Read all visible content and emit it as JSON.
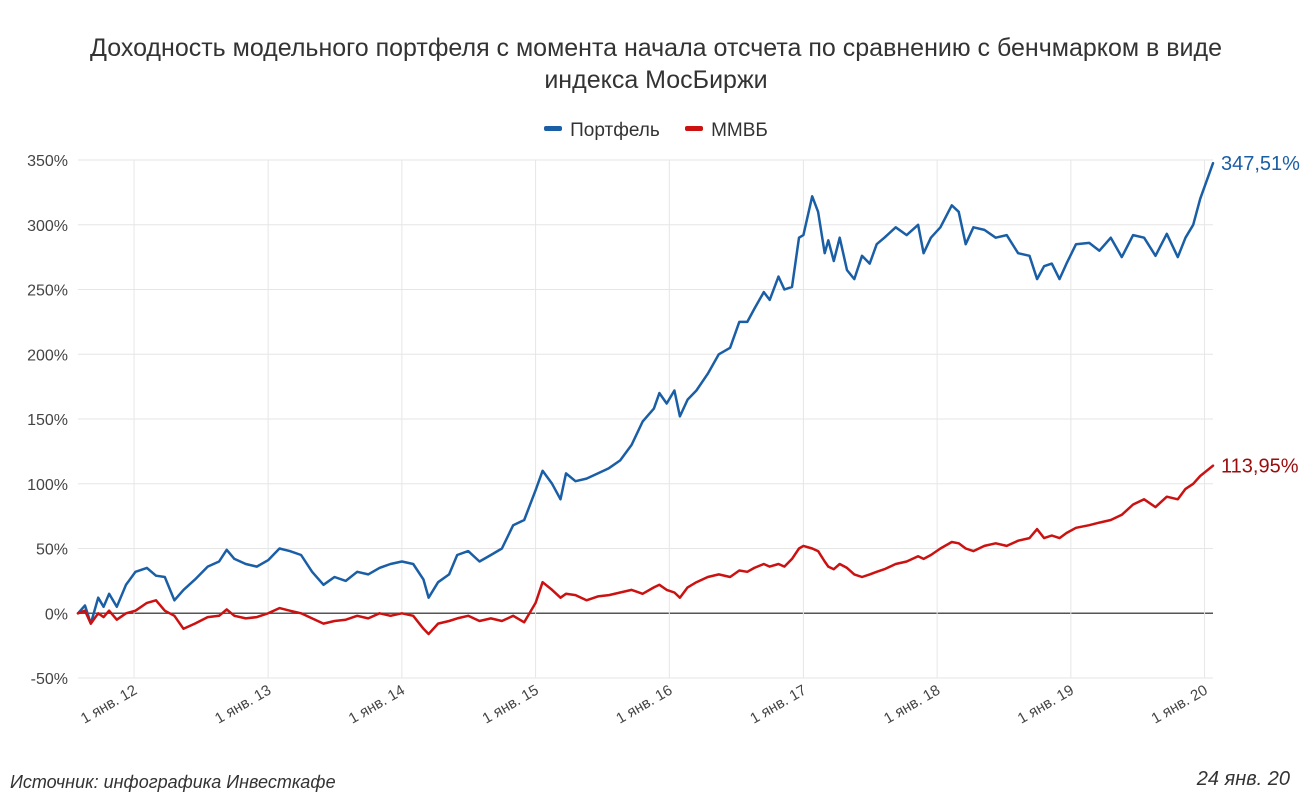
{
  "chart_data": {
    "type": "line",
    "title_lines": [
      "Доходность модельного портфеля с момента начала отсчета по сравнению с бенчмарком в виде",
      "индекса МосБиржи"
    ],
    "x_ticks": [
      "1 янв. 12",
      "1 янв. 13",
      "1 янв. 14",
      "1 янв. 15",
      "1 янв. 16",
      "1 янв. 17",
      "1 янв. 18",
      "1 янв. 19",
      "1 янв. 20"
    ],
    "x_range": [
      "2011-08-01",
      "2020-01-24"
    ],
    "y_ticks": [
      "350%",
      "300%",
      "250%",
      "200%",
      "150%",
      "100%",
      "50%",
      "0%",
      "-50%"
    ],
    "ylim": [
      -50,
      350
    ],
    "ylabel": "",
    "xlabel": "",
    "grid": true,
    "legend_position": "top-center",
    "series": [
      {
        "name": "Портфель",
        "color": "#1a5ea6",
        "end_label": "347,51%",
        "points": [
          [
            "2011-08-01",
            0
          ],
          [
            "2011-08-20",
            6
          ],
          [
            "2011-09-05",
            -8
          ],
          [
            "2011-09-25",
            12
          ],
          [
            "2011-10-10",
            5
          ],
          [
            "2011-10-25",
            15
          ],
          [
            "2011-11-15",
            5
          ],
          [
            "2011-12-10",
            22
          ],
          [
            "2012-01-05",
            32
          ],
          [
            "2012-02-05",
            35
          ],
          [
            "2012-03-01",
            29
          ],
          [
            "2012-03-25",
            28
          ],
          [
            "2012-04-20",
            10
          ],
          [
            "2012-05-15",
            18
          ],
          [
            "2012-06-15",
            26
          ],
          [
            "2012-07-20",
            36
          ],
          [
            "2012-08-20",
            40
          ],
          [
            "2012-09-10",
            49
          ],
          [
            "2012-10-01",
            42
          ],
          [
            "2012-11-01",
            38
          ],
          [
            "2012-12-01",
            36
          ],
          [
            "2013-01-01",
            41
          ],
          [
            "2013-02-01",
            50
          ],
          [
            "2013-03-01",
            48
          ],
          [
            "2013-04-01",
            45
          ],
          [
            "2013-05-01",
            32
          ],
          [
            "2013-06-01",
            22
          ],
          [
            "2013-07-01",
            28
          ],
          [
            "2013-08-01",
            25
          ],
          [
            "2013-09-01",
            32
          ],
          [
            "2013-10-01",
            30
          ],
          [
            "2013-11-01",
            35
          ],
          [
            "2013-12-01",
            38
          ],
          [
            "2014-01-01",
            40
          ],
          [
            "2014-02-01",
            38
          ],
          [
            "2014-03-01",
            26
          ],
          [
            "2014-03-15",
            12
          ],
          [
            "2014-04-10",
            24
          ],
          [
            "2014-05-10",
            30
          ],
          [
            "2014-06-01",
            45
          ],
          [
            "2014-07-01",
            48
          ],
          [
            "2014-08-01",
            40
          ],
          [
            "2014-09-01",
            45
          ],
          [
            "2014-10-01",
            50
          ],
          [
            "2014-11-01",
            68
          ],
          [
            "2014-12-01",
            72
          ],
          [
            "2015-01-01",
            95
          ],
          [
            "2015-01-20",
            110
          ],
          [
            "2015-02-15",
            100
          ],
          [
            "2015-03-10",
            88
          ],
          [
            "2015-03-25",
            108
          ],
          [
            "2015-04-20",
            102
          ],
          [
            "2015-05-20",
            104
          ],
          [
            "2015-06-20",
            108
          ],
          [
            "2015-07-20",
            112
          ],
          [
            "2015-08-20",
            118
          ],
          [
            "2015-09-20",
            130
          ],
          [
            "2015-10-20",
            148
          ],
          [
            "2015-11-20",
            158
          ],
          [
            "2015-12-05",
            170
          ],
          [
            "2015-12-25",
            162
          ],
          [
            "2016-01-15",
            172
          ],
          [
            "2016-01-30",
            152
          ],
          [
            "2016-02-20",
            165
          ],
          [
            "2016-03-15",
            172
          ],
          [
            "2016-04-15",
            185
          ],
          [
            "2016-05-15",
            200
          ],
          [
            "2016-06-15",
            205
          ],
          [
            "2016-07-10",
            225
          ],
          [
            "2016-08-01",
            225
          ],
          [
            "2016-08-20",
            235
          ],
          [
            "2016-09-15",
            248
          ],
          [
            "2016-10-01",
            242
          ],
          [
            "2016-10-25",
            260
          ],
          [
            "2016-11-10",
            250
          ],
          [
            "2016-12-01",
            252
          ],
          [
            "2016-12-20",
            290
          ],
          [
            "2017-01-01",
            292
          ],
          [
            "2017-01-25",
            322
          ],
          [
            "2017-02-10",
            310
          ],
          [
            "2017-02-28",
            278
          ],
          [
            "2017-03-10",
            288
          ],
          [
            "2017-03-25",
            272
          ],
          [
            "2017-04-10",
            290
          ],
          [
            "2017-04-30",
            265
          ],
          [
            "2017-05-20",
            258
          ],
          [
            "2017-06-10",
            276
          ],
          [
            "2017-07-01",
            270
          ],
          [
            "2017-07-20",
            285
          ],
          [
            "2017-08-10",
            290
          ],
          [
            "2017-09-10",
            298
          ],
          [
            "2017-10-10",
            292
          ],
          [
            "2017-11-10",
            300
          ],
          [
            "2017-11-25",
            278
          ],
          [
            "2017-12-15",
            290
          ],
          [
            "2018-01-10",
            298
          ],
          [
            "2018-02-10",
            315
          ],
          [
            "2018-03-01",
            310
          ],
          [
            "2018-03-20",
            285
          ],
          [
            "2018-04-10",
            298
          ],
          [
            "2018-05-10",
            296
          ],
          [
            "2018-06-10",
            290
          ],
          [
            "2018-07-10",
            292
          ],
          [
            "2018-08-10",
            278
          ],
          [
            "2018-09-10",
            276
          ],
          [
            "2018-10-01",
            258
          ],
          [
            "2018-10-20",
            268
          ],
          [
            "2018-11-10",
            270
          ],
          [
            "2018-12-01",
            258
          ],
          [
            "2018-12-20",
            270
          ],
          [
            "2019-01-15",
            285
          ],
          [
            "2019-02-20",
            286
          ],
          [
            "2019-03-20",
            280
          ],
          [
            "2019-04-20",
            290
          ],
          [
            "2019-05-20",
            275
          ],
          [
            "2019-06-20",
            292
          ],
          [
            "2019-07-20",
            290
          ],
          [
            "2019-08-20",
            276
          ],
          [
            "2019-09-20",
            293
          ],
          [
            "2019-10-20",
            275
          ],
          [
            "2019-11-10",
            290
          ],
          [
            "2019-12-01",
            300
          ],
          [
            "2019-12-20",
            320
          ],
          [
            "2020-01-24",
            347.51
          ]
        ]
      },
      {
        "name": "ММВБ",
        "color": "#cc1111",
        "end_label": "113,95%",
        "points": [
          [
            "2011-08-01",
            0
          ],
          [
            "2011-08-20",
            2
          ],
          [
            "2011-09-05",
            -8
          ],
          [
            "2011-09-25",
            0
          ],
          [
            "2011-10-10",
            -3
          ],
          [
            "2011-10-25",
            2
          ],
          [
            "2011-11-15",
            -5
          ],
          [
            "2011-12-10",
            0
          ],
          [
            "2012-01-05",
            2
          ],
          [
            "2012-02-05",
            8
          ],
          [
            "2012-03-01",
            10
          ],
          [
            "2012-03-25",
            2
          ],
          [
            "2012-04-20",
            -2
          ],
          [
            "2012-05-15",
            -12
          ],
          [
            "2012-06-15",
            -8
          ],
          [
            "2012-07-20",
            -3
          ],
          [
            "2012-08-20",
            -2
          ],
          [
            "2012-09-10",
            3
          ],
          [
            "2012-10-01",
            -2
          ],
          [
            "2012-11-01",
            -4
          ],
          [
            "2012-12-01",
            -3
          ],
          [
            "2013-01-01",
            0
          ],
          [
            "2013-02-01",
            4
          ],
          [
            "2013-03-01",
            2
          ],
          [
            "2013-04-01",
            0
          ],
          [
            "2013-05-01",
            -4
          ],
          [
            "2013-06-01",
            -8
          ],
          [
            "2013-07-01",
            -6
          ],
          [
            "2013-08-01",
            -5
          ],
          [
            "2013-09-01",
            -2
          ],
          [
            "2013-10-01",
            -4
          ],
          [
            "2013-11-01",
            0
          ],
          [
            "2013-12-01",
            -2
          ],
          [
            "2014-01-01",
            0
          ],
          [
            "2014-02-01",
            -2
          ],
          [
            "2014-03-01",
            -12
          ],
          [
            "2014-03-15",
            -16
          ],
          [
            "2014-04-10",
            -8
          ],
          [
            "2014-05-10",
            -6
          ],
          [
            "2014-06-01",
            -4
          ],
          [
            "2014-07-01",
            -2
          ],
          [
            "2014-08-01",
            -6
          ],
          [
            "2014-09-01",
            -4
          ],
          [
            "2014-10-01",
            -6
          ],
          [
            "2014-11-01",
            -2
          ],
          [
            "2014-12-01",
            -7
          ],
          [
            "2015-01-01",
            8
          ],
          [
            "2015-01-20",
            24
          ],
          [
            "2015-02-15",
            18
          ],
          [
            "2015-03-10",
            12
          ],
          [
            "2015-03-25",
            15
          ],
          [
            "2015-04-20",
            14
          ],
          [
            "2015-05-20",
            10
          ],
          [
            "2015-06-20",
            13
          ],
          [
            "2015-07-20",
            14
          ],
          [
            "2015-08-20",
            16
          ],
          [
            "2015-09-20",
            18
          ],
          [
            "2015-10-20",
            15
          ],
          [
            "2015-11-20",
            20
          ],
          [
            "2015-12-05",
            22
          ],
          [
            "2015-12-25",
            18
          ],
          [
            "2016-01-15",
            16
          ],
          [
            "2016-01-30",
            12
          ],
          [
            "2016-02-20",
            20
          ],
          [
            "2016-03-15",
            24
          ],
          [
            "2016-04-15",
            28
          ],
          [
            "2016-05-15",
            30
          ],
          [
            "2016-06-15",
            28
          ],
          [
            "2016-07-10",
            33
          ],
          [
            "2016-08-01",
            32
          ],
          [
            "2016-08-20",
            35
          ],
          [
            "2016-09-15",
            38
          ],
          [
            "2016-10-01",
            36
          ],
          [
            "2016-10-25",
            38
          ],
          [
            "2016-11-10",
            36
          ],
          [
            "2016-12-01",
            42
          ],
          [
            "2016-12-20",
            50
          ],
          [
            "2017-01-01",
            52
          ],
          [
            "2017-01-25",
            50
          ],
          [
            "2017-02-10",
            48
          ],
          [
            "2017-02-28",
            40
          ],
          [
            "2017-03-10",
            36
          ],
          [
            "2017-03-25",
            34
          ],
          [
            "2017-04-10",
            38
          ],
          [
            "2017-04-30",
            35
          ],
          [
            "2017-05-20",
            30
          ],
          [
            "2017-06-10",
            28
          ],
          [
            "2017-07-01",
            30
          ],
          [
            "2017-07-20",
            32
          ],
          [
            "2017-08-10",
            34
          ],
          [
            "2017-09-10",
            38
          ],
          [
            "2017-10-10",
            40
          ],
          [
            "2017-11-10",
            44
          ],
          [
            "2017-11-25",
            42
          ],
          [
            "2017-12-15",
            45
          ],
          [
            "2018-01-10",
            50
          ],
          [
            "2018-02-10",
            55
          ],
          [
            "2018-03-01",
            54
          ],
          [
            "2018-03-20",
            50
          ],
          [
            "2018-04-10",
            48
          ],
          [
            "2018-05-10",
            52
          ],
          [
            "2018-06-10",
            54
          ],
          [
            "2018-07-10",
            52
          ],
          [
            "2018-08-10",
            56
          ],
          [
            "2018-09-10",
            58
          ],
          [
            "2018-10-01",
            65
          ],
          [
            "2018-10-20",
            58
          ],
          [
            "2018-11-10",
            60
          ],
          [
            "2018-12-01",
            58
          ],
          [
            "2018-12-20",
            62
          ],
          [
            "2019-01-15",
            66
          ],
          [
            "2019-02-20",
            68
          ],
          [
            "2019-03-20",
            70
          ],
          [
            "2019-04-20",
            72
          ],
          [
            "2019-05-20",
            76
          ],
          [
            "2019-06-20",
            84
          ],
          [
            "2019-07-20",
            88
          ],
          [
            "2019-08-20",
            82
          ],
          [
            "2019-09-20",
            90
          ],
          [
            "2019-10-20",
            88
          ],
          [
            "2019-11-10",
            96
          ],
          [
            "2019-12-01",
            100
          ],
          [
            "2019-12-20",
            106
          ],
          [
            "2020-01-24",
            113.95
          ]
        ]
      }
    ]
  },
  "source_note": "Источник: инфографика Инвесткафе",
  "date_note": "24 янв. 20"
}
